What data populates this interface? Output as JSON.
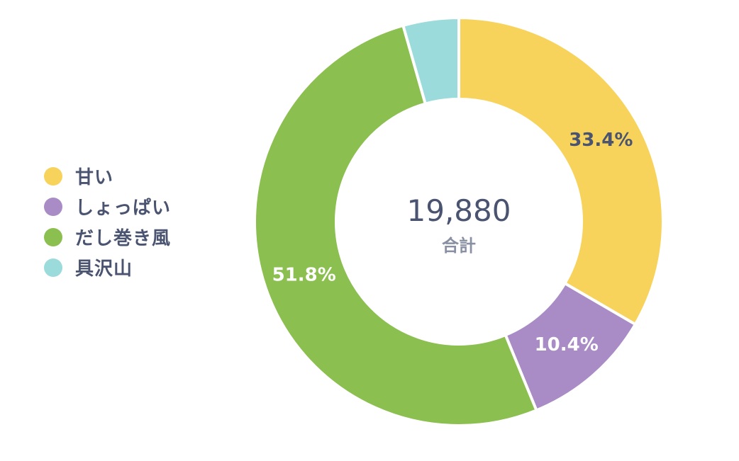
{
  "chart_data": {
    "type": "pie",
    "categories": [
      "甘い",
      "しょっぱい",
      "だし巻き風",
      "具沢山"
    ],
    "values": [
      33.4,
      10.4,
      51.8,
      4.4
    ],
    "data_labels": [
      "33.4%",
      "10.4%",
      "51.8%",
      ""
    ],
    "colors": [
      "#f7d35c",
      "#a98bc6",
      "#8bbf4f",
      "#9bdbdc"
    ],
    "label_colors": [
      "#4a5470",
      "#ffffff",
      "#ffffff",
      "#ffffff"
    ],
    "center_total": "19,880",
    "center_caption": "合計",
    "legend_position": "left",
    "donut": true
  }
}
